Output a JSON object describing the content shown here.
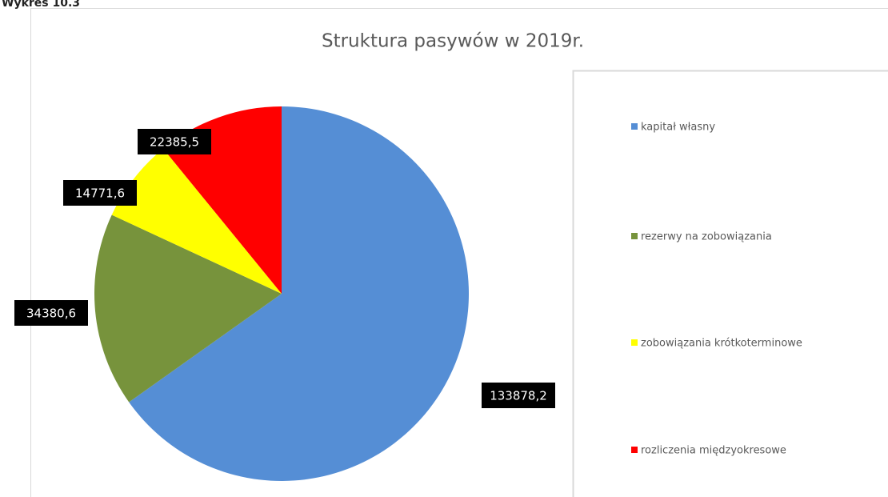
{
  "caption": "Wykres 10.3",
  "chart_data": {
    "type": "pie",
    "title": "Struktura pasywów w 2019r.",
    "categories": [
      "kapitał własny",
      "rezerwy na zobowiązania",
      "zobowiązania krótkoterminowe",
      "rozliczenia międzyokresowe"
    ],
    "values": [
      133878.2,
      34380.6,
      14771.6,
      22385.5
    ],
    "value_labels": [
      "133878,2",
      "34380,6",
      "14771,6",
      "22385,5"
    ],
    "colors": [
      "#558ed5",
      "#77933c",
      "#ffff00",
      "#ff0000"
    ],
    "legend": "right"
  }
}
